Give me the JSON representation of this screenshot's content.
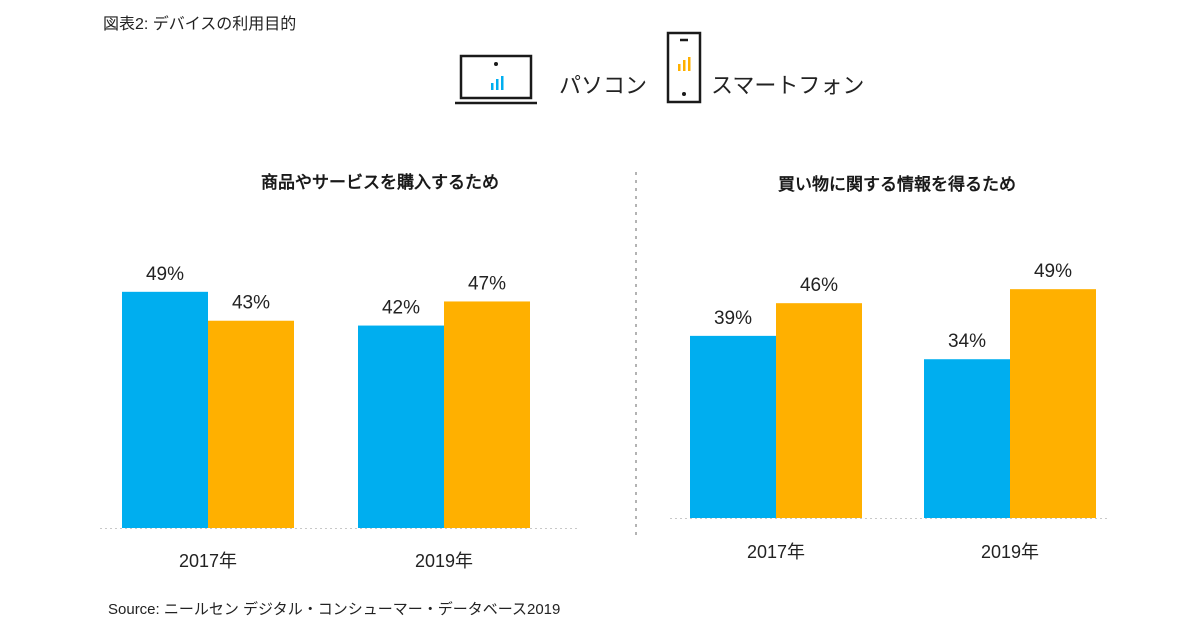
{
  "figure_title": "図表2: デバイスの利用目的",
  "legend": [
    {
      "name": "パソコン",
      "icon": "laptop-icon",
      "color": "#00AEEF"
    },
    {
      "name": "スマートフォン",
      "icon": "smartphone-icon",
      "color": "#FFB000"
    }
  ],
  "source": "Source: ニールセン デジタル・コンシューマー・データベース2019",
  "chart_data": [
    {
      "type": "bar",
      "title": "商品やサービスを購入するため",
      "categories": [
        "2017年",
        "2019年"
      ],
      "series": [
        {
          "name": "パソコン",
          "color": "#00AEEF",
          "values": [
            49,
            42
          ]
        },
        {
          "name": "スマートフォン",
          "color": "#FFB000",
          "values": [
            43,
            47
          ]
        }
      ],
      "value_suffix": "%",
      "xlabel": "",
      "ylabel": "",
      "ylim": [
        0,
        50
      ],
      "grid": false,
      "legend": "top-center"
    },
    {
      "type": "bar",
      "title": "買い物に関する情報を得るため",
      "categories": [
        "2017年",
        "2019年"
      ],
      "series": [
        {
          "name": "パソコン",
          "color": "#00AEEF",
          "values": [
            39,
            34
          ]
        },
        {
          "name": "スマートフォン",
          "color": "#FFB000",
          "values": [
            46,
            49
          ]
        }
      ],
      "value_suffix": "%",
      "xlabel": "",
      "ylabel": "",
      "ylim": [
        0,
        50
      ],
      "grid": false,
      "legend": "top-center"
    }
  ]
}
